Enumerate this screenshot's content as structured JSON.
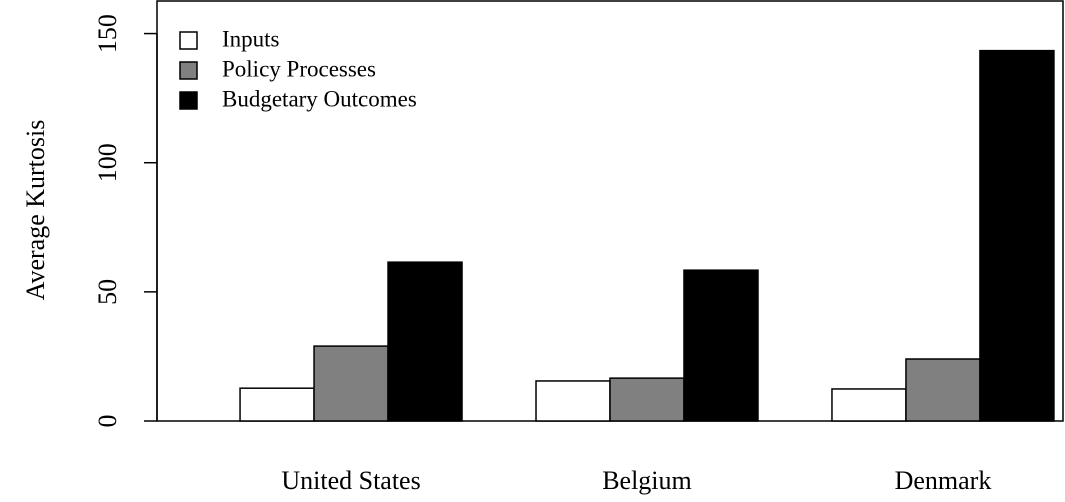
{
  "chart_data": {
    "type": "bar",
    "ylabel": "Average Kurtosis",
    "categories": [
      "United States",
      "Belgium",
      "Denmark"
    ],
    "series": [
      {
        "name": "Inputs",
        "color": "#ffffff",
        "values": [
          12.7,
          15.5,
          12.4
        ]
      },
      {
        "name": "Policy Processes",
        "color": "#808080",
        "values": [
          29,
          16.6,
          24
        ]
      },
      {
        "name": "Budgetary Outcomes",
        "color": "#000000",
        "values": [
          61.5,
          58.4,
          143.4
        ]
      }
    ],
    "ylim": [
      0,
      163
    ],
    "yticks": [
      0,
      50,
      100,
      150
    ],
    "grid": false,
    "legend": "top-left"
  }
}
